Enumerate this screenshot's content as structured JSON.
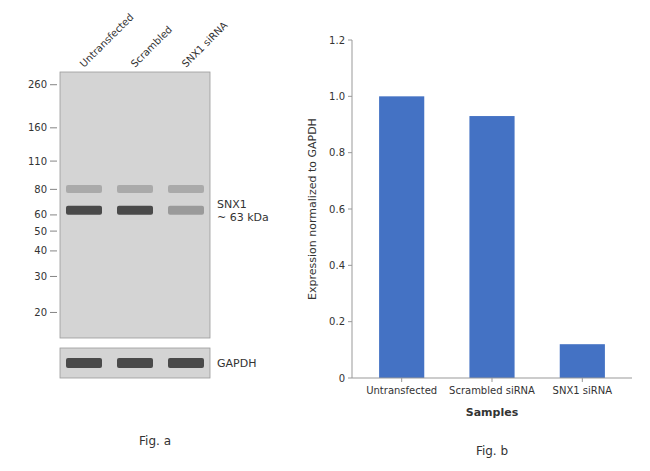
{
  "chart_data": [
    {
      "type": "blot",
      "title": "Fig.  a",
      "categories": [
        "Untransfected",
        "Scrambled",
        "SNX1 siRNA"
      ],
      "log": "y",
      "ylim": [
        15,
        300
      ],
      "yticks": [
        260,
        160,
        110,
        80,
        60,
        50,
        40,
        30,
        20
      ],
      "annotations": [
        "SNX1\n~ 63 kDa",
        "GAPDH"
      ],
      "color": "#d4d4d4",
      "colors": [
        "#aaaaaa",
        "#aaaaaa",
        "#aaaaaa",
        "#4a4a4a",
        "#4a4a4a",
        "#9a9a9a",
        "#4a4a4a",
        "#4a4a4a",
        "#4a4a4a"
      ]
    },
    {
      "type": "bar",
      "title": "Fig.  b",
      "categories": [
        "Untransfected",
        "Scrambled siRNA",
        "SNX1 siRNA"
      ],
      "values": [
        1.0,
        0.93,
        0.12
      ],
      "color": "#4472c4",
      "xlabel": "Samples",
      "ylabel": "Expression normalized to GAPDH",
      "ylim": [
        0,
        1.2
      ],
      "yticks": [
        0,
        0.2,
        0.4,
        0.6,
        0.8,
        {
          "value": 1.0,
          "label": "1.0"
        },
        1.2
      ]
    }
  ]
}
